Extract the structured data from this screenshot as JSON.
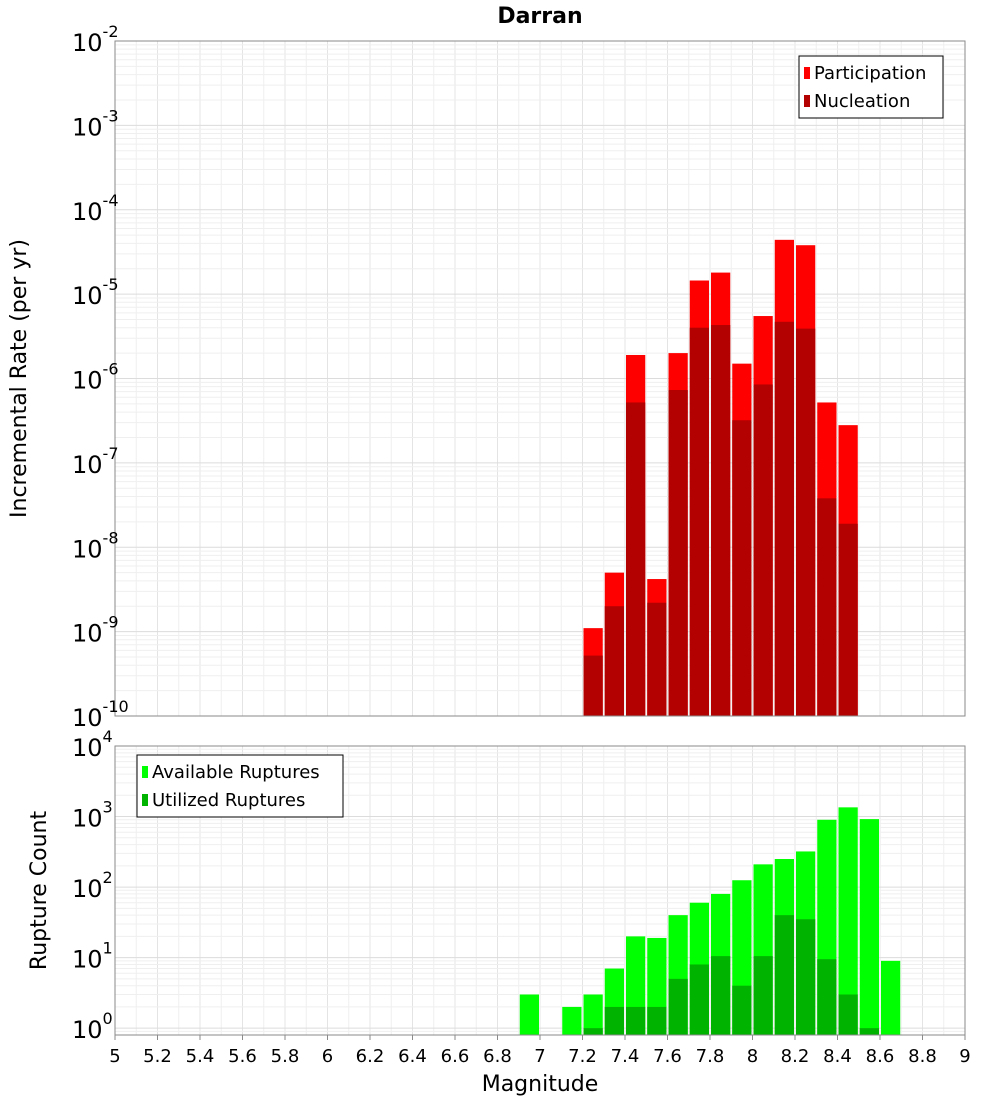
{
  "chart_data": [
    {
      "type": "bar",
      "title": "Darran",
      "xlabel": "",
      "ylabel": "Incremental Rate (per yr)",
      "yscale": "log",
      "ylim": [
        1e-10,
        0.01
      ],
      "xlim": [
        5,
        9
      ],
      "grid": true,
      "legend_position": "top-right",
      "yticks": [
        {
          "base": "10",
          "exp": "-10"
        },
        {
          "base": "10",
          "exp": "-9"
        },
        {
          "base": "10",
          "exp": "-8"
        },
        {
          "base": "10",
          "exp": "-7"
        },
        {
          "base": "10",
          "exp": "-6"
        },
        {
          "base": "10",
          "exp": "-5"
        },
        {
          "base": "10",
          "exp": "-4"
        },
        {
          "base": "10",
          "exp": "-3"
        },
        {
          "base": "10",
          "exp": "-2"
        }
      ],
      "x": [
        7.25,
        7.35,
        7.45,
        7.55,
        7.65,
        7.75,
        7.85,
        7.95,
        8.05,
        8.15,
        8.25,
        8.35,
        8.45
      ],
      "series": [
        {
          "name": "Participation",
          "color": "#ff0000",
          "values": [
            1.1e-09,
            5e-09,
            1.9e-06,
            4.2e-09,
            2e-06,
            1.45e-05,
            1.8e-05,
            1.5e-06,
            5.5e-06,
            4.4e-05,
            3.8e-05,
            5.2e-07,
            2.8e-07
          ]
        },
        {
          "name": "Nucleation",
          "color": "#b30000",
          "values": [
            5.2e-10,
            2e-09,
            5.2e-07,
            2.2e-09,
            7.3e-07,
            4e-06,
            4.3e-06,
            3.2e-07,
            8.5e-07,
            4.7e-06,
            3.9e-06,
            3.8e-08,
            1.9e-08
          ]
        }
      ]
    },
    {
      "type": "bar",
      "title": "",
      "xlabel": "Magnitude",
      "ylabel": "Rupture Count",
      "yscale": "log",
      "ylim": [
        0.8,
        10000
      ],
      "xlim": [
        5,
        9
      ],
      "grid": true,
      "legend_position": "top-left",
      "xticks": [
        "5",
        "5.2",
        "5.4",
        "5.6",
        "5.8",
        "6",
        "6.2",
        "6.4",
        "6.6",
        "6.8",
        "7",
        "7.2",
        "7.4",
        "7.6",
        "7.8",
        "8",
        "8.2",
        "8.4",
        "8.6",
        "8.8",
        "9"
      ],
      "yticks": [
        {
          "base": "10",
          "exp": "0"
        },
        {
          "base": "10",
          "exp": "1"
        },
        {
          "base": "10",
          "exp": "2"
        },
        {
          "base": "10",
          "exp": "3"
        },
        {
          "base": "10",
          "exp": "4"
        }
      ],
      "x": [
        6.95,
        7.15,
        7.25,
        7.35,
        7.45,
        7.55,
        7.65,
        7.75,
        7.85,
        7.95,
        8.05,
        8.15,
        8.25,
        8.35,
        8.45,
        8.55,
        8.65
      ],
      "series": [
        {
          "name": "Available Ruptures",
          "color": "#00ff00",
          "values": [
            3,
            2,
            3,
            7,
            20,
            19,
            40,
            60,
            80,
            125,
            210,
            250,
            320,
            900,
            1350,
            920,
            9
          ]
        },
        {
          "name": "Utilized Ruptures",
          "color": "#00b300",
          "values": [
            null,
            null,
            1,
            2,
            2,
            2,
            5,
            8,
            10.5,
            4,
            10.5,
            40,
            35,
            9.5,
            3,
            1,
            null
          ]
        }
      ]
    }
  ]
}
